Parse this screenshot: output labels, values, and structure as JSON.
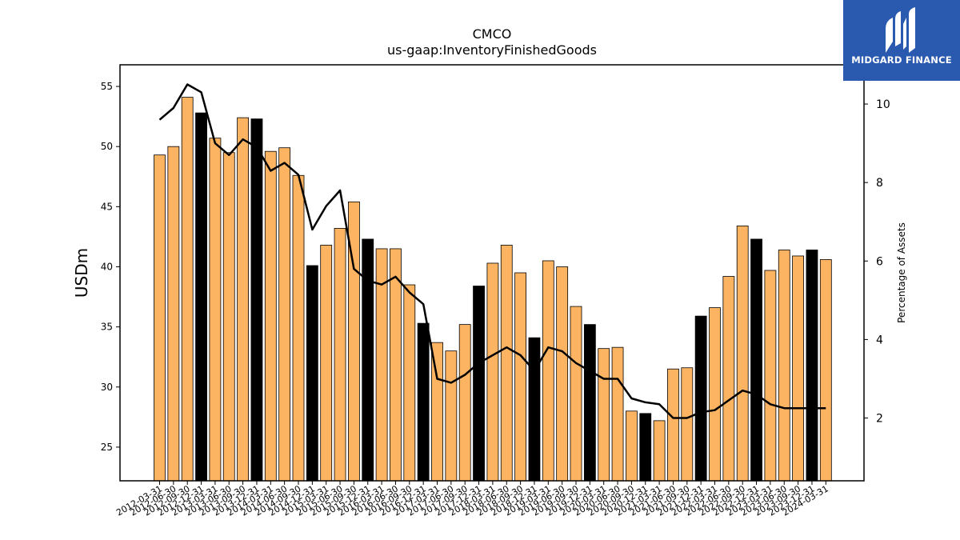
{
  "chart_data": {
    "type": "bar",
    "title": "CMCO",
    "subtitle": "us-gaap:InventoryFinishedGoods",
    "ylabel": "USDm",
    "y2label": "Percentage of Assets",
    "ylim": [
      22.2,
      56.8
    ],
    "y2lim": [
      0.4,
      11.0
    ],
    "yticks": [
      25,
      30,
      35,
      40,
      45,
      50,
      55
    ],
    "y2ticks": [
      2,
      4,
      6,
      8,
      10
    ],
    "categories": [
      "2012-03-31",
      "2012-06-30",
      "2012-09-30",
      "2012-12-31",
      "2013-03-31",
      "2013-06-30",
      "2013-09-30",
      "2013-12-31",
      "2014-03-31",
      "2014-06-30",
      "2014-09-30",
      "2014-12-31",
      "2015-03-31",
      "2015-06-30",
      "2015-09-30",
      "2015-12-31",
      "2016-03-31",
      "2016-06-30",
      "2016-09-30",
      "2016-12-31",
      "2017-03-31",
      "2017-06-30",
      "2017-09-30",
      "2017-12-31",
      "2018-03-31",
      "2018-06-30",
      "2018-09-30",
      "2018-12-31",
      "2019-03-31",
      "2019-06-30",
      "2019-09-30",
      "2019-12-31",
      "2020-03-31",
      "2020-06-30",
      "2020-09-30",
      "2020-12-31",
      "2021-03-31",
      "2021-06-30",
      "2021-09-30",
      "2021-12-31",
      "2022-03-31",
      "2022-06-30",
      "2022-09-30",
      "2022-12-31",
      "2023-03-31",
      "2023-06-30",
      "2023-09-30",
      "2023-12-31",
      "2024-03-31"
    ],
    "series": [
      {
        "values": [
          49.3,
          50.0,
          54.1,
          52.8,
          50.7,
          49.5,
          52.4,
          52.3,
          49.6,
          49.9,
          47.6,
          40.1,
          41.8,
          43.2,
          45.4,
          42.3,
          41.5,
          41.5,
          38.5,
          35.3,
          33.7,
          33.0,
          35.2,
          38.4,
          40.3,
          41.8,
          39.5,
          34.1,
          40.5,
          40.0,
          36.7,
          35.2,
          33.2,
          33.3,
          28.0,
          27.8,
          27.2,
          31.5,
          31.6,
          35.9,
          36.6,
          39.2,
          43.4,
          42.3,
          39.7,
          41.4,
          40.9,
          41.4,
          40.6
        ]
      },
      {
        "axis": "right",
        "values": [
          9.6,
          9.9,
          10.5,
          10.3,
          9.0,
          8.7,
          9.1,
          8.9,
          8.3,
          8.5,
          8.2,
          6.8,
          7.4,
          7.8,
          5.8,
          5.5,
          5.4,
          5.6,
          5.2,
          4.9,
          3.0,
          2.9,
          3.1,
          3.4,
          3.6,
          3.8,
          3.6,
          3.2,
          3.8,
          3.7,
          3.4,
          3.2,
          3.0,
          3.0,
          2.5,
          2.4,
          2.35,
          2.0,
          2.0,
          2.15,
          2.2,
          2.45,
          2.7,
          2.6,
          2.35,
          2.25,
          2.25,
          2.25,
          2.25
        ]
      }
    ],
    "bar_colors": [
      "#fdb462",
      "#fdb462",
      "#fdb462",
      "#000000",
      "#fdb462",
      "#fdb462",
      "#fdb462",
      "#000000",
      "#fdb462",
      "#fdb462",
      "#fdb462",
      "#000000",
      "#fdb462",
      "#fdb462",
      "#fdb462",
      "#000000",
      "#fdb462",
      "#fdb462",
      "#fdb462",
      "#000000",
      "#fdb462",
      "#fdb462",
      "#fdb462",
      "#000000",
      "#fdb462",
      "#fdb462",
      "#fdb462",
      "#000000",
      "#fdb462",
      "#fdb462",
      "#fdb462",
      "#000000",
      "#fdb462",
      "#fdb462",
      "#fdb462",
      "#000000",
      "#fdb462",
      "#fdb462",
      "#fdb462",
      "#000000",
      "#fdb462",
      "#fdb462",
      "#fdb462",
      "#000000",
      "#fdb462",
      "#fdb462",
      "#fdb462",
      "#000000",
      "#fdb462"
    ],
    "line_color": "#000000",
    "grid": false,
    "legend": "none"
  },
  "logo": {
    "text": "MIDGARD FINANCE",
    "background": "#2a59b0"
  }
}
